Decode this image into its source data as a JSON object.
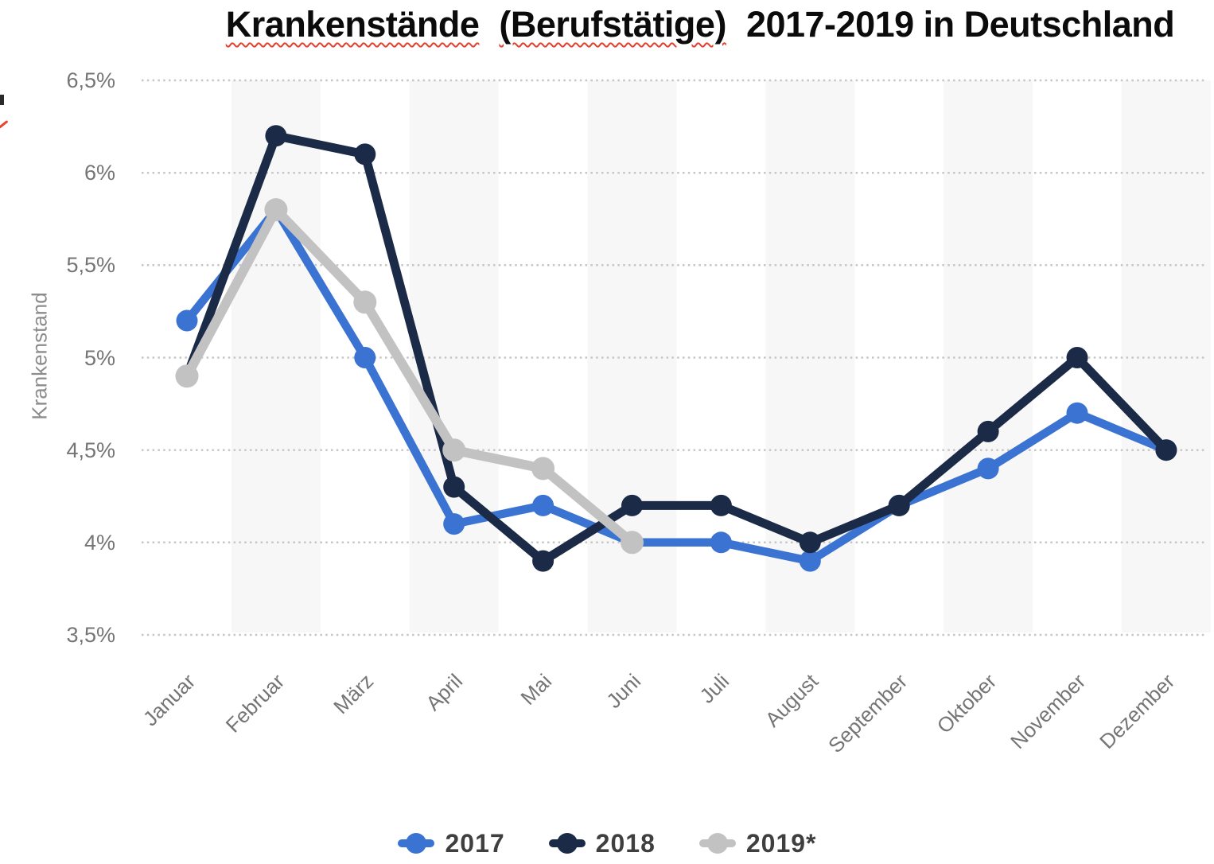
{
  "title": {
    "misspelled_word_1": "Krankenstände",
    "misspelled_word_2": "(Berufstätige)",
    "rest": "2017-2019 in Deutschland",
    "spellcheck_underline_color": "#e2402f"
  },
  "y_axis": {
    "label": "Krankenstand",
    "ticks": [
      "6,5%",
      "6%",
      "5,5%",
      "5%",
      "4,5%",
      "4%",
      "3,5%"
    ]
  },
  "x_axis": {
    "ticks": [
      "Januar",
      "Februar",
      "März",
      "April",
      "Mai",
      "Juni",
      "Juli",
      "August",
      "September",
      "Oktober",
      "November",
      "Dezember"
    ]
  },
  "legend": {
    "items": [
      {
        "label": "2017",
        "color": "#3b73d2"
      },
      {
        "label": "2018",
        "color": "#1b2a47"
      },
      {
        "label": "2019*",
        "color": "#c2c2c2"
      }
    ]
  },
  "colors": {
    "band": "#f7f7f7",
    "gridline": "#c6c6c6",
    "tick_text": "#757575",
    "axis_title_text": "#8c8c8c",
    "legend_text": "#3f3f3f",
    "title_text": "#0b0b0b"
  },
  "chart_data": {
    "type": "line",
    "title": "Krankenstände (Berufstätige) 2017-2019 in Deutschland",
    "ylabel": "Krankenstand",
    "xlabel": "",
    "unit": "%",
    "ylim": [
      3.5,
      6.5
    ],
    "ytick_step": 0.5,
    "grid": "horizontal-dotted",
    "background_bands": "alternating months",
    "legend_position": "bottom",
    "categories": [
      "Januar",
      "Februar",
      "März",
      "April",
      "Mai",
      "Juni",
      "Juli",
      "August",
      "September",
      "Oktober",
      "November",
      "Dezember"
    ],
    "series": [
      {
        "name": "2017",
        "color": "#3b73d2",
        "values": [
          5.2,
          5.8,
          5.0,
          4.1,
          4.2,
          4.0,
          4.0,
          3.9,
          4.2,
          4.4,
          4.7,
          4.5
        ]
      },
      {
        "name": "2018",
        "color": "#1b2a47",
        "values": [
          4.9,
          6.2,
          6.1,
          4.3,
          3.9,
          4.2,
          4.2,
          4.0,
          4.2,
          4.6,
          5.0,
          4.5
        ]
      },
      {
        "name": "2019*",
        "color": "#c2c2c2",
        "values": [
          4.9,
          5.8,
          5.3,
          4.5,
          4.4,
          4.0,
          null,
          null,
          null,
          null,
          null,
          null
        ]
      }
    ]
  }
}
